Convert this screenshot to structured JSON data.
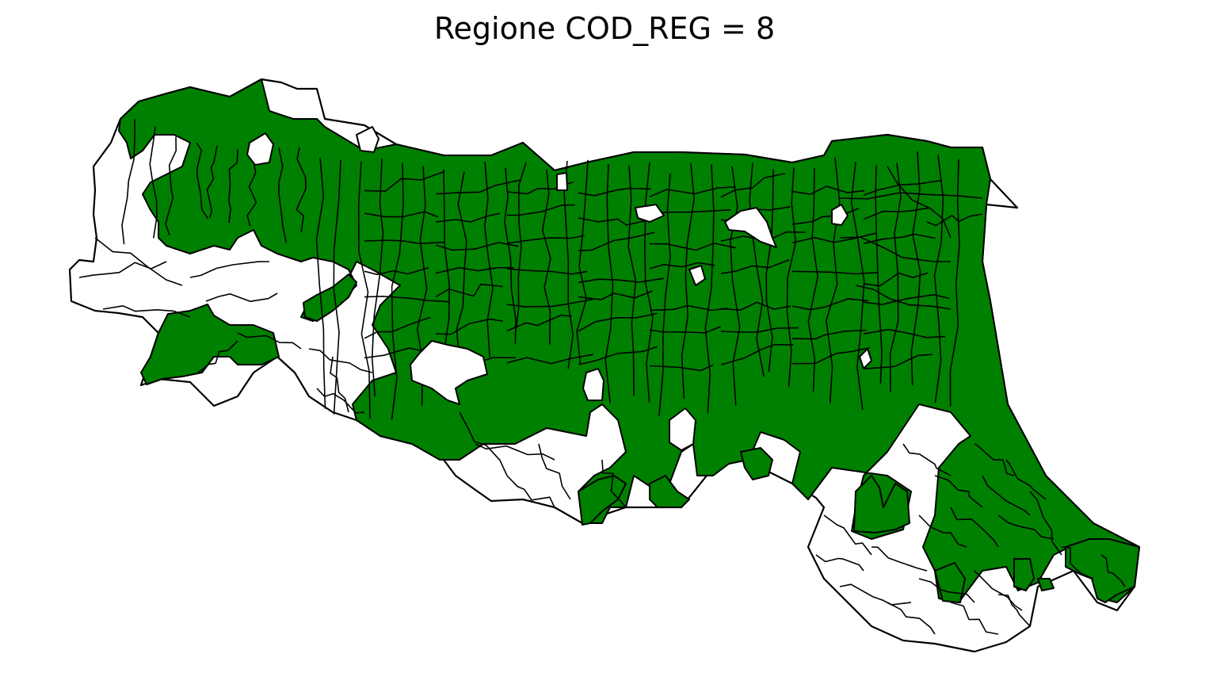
{
  "title": "Regione COD_REG = 8",
  "colors": {
    "selected_fill": "#008000",
    "unselected_fill": "#ffffff",
    "border": "#000000",
    "background": "#ffffff"
  },
  "legend": "none",
  "axes": "off"
}
